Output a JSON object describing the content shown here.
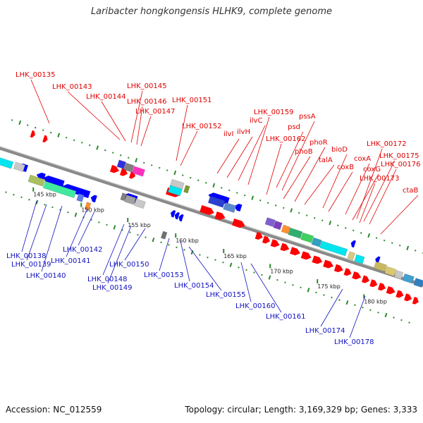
{
  "title": "Laribacter hongkongensis HLHK9, complete genome",
  "footer": {
    "accession": "Accession: NC_012559",
    "topology": "Topology: circular; Length: 3,169,329 bp; Genes: 3,333"
  },
  "ticks": [
    "145 kbp",
    "150 kbp",
    "155 kbp",
    "160 kbp",
    "165 kbp",
    "170 kbp",
    "175 kbp",
    "180 kbp"
  ],
  "labels_top": [
    "LHK_00135",
    "LHK_00143",
    "LHK_00144",
    "LHK_00145",
    "LHK_00146",
    "LHK_00147",
    "LHK_00151",
    "LHK_00152",
    "ilvI",
    "ilvH",
    "ilvC",
    "LHK_00159",
    "pssA",
    "psd",
    "LHK_00162",
    "phoR",
    "phoB",
    "talA",
    "bioD",
    "coxB",
    "coxA",
    "LHK_00172",
    "coxG",
    "LHK_00175",
    "LHK_00176",
    "LHK_00173",
    "ctaB"
  ],
  "labels_bottom": [
    "LHK_00138",
    "LHK_00139",
    "LHK_00140",
    "LHK_00141",
    "LHK_00142",
    "LHK_00148",
    "LHK_00149",
    "LHK_00150",
    "LHK_00153",
    "LHK_00154",
    "LHK_00155",
    "LHK_00160",
    "LHK_00161",
    "LHK_00174",
    "LHK_00178"
  ],
  "colors": {
    "forward_label": "#e00000",
    "reverse_label": "#1010c0",
    "backbone": "#8a8a8a",
    "dots": "#2a8a2a",
    "forward_cds": "#ff0000",
    "reverse_cds": "#0000ff"
  }
}
